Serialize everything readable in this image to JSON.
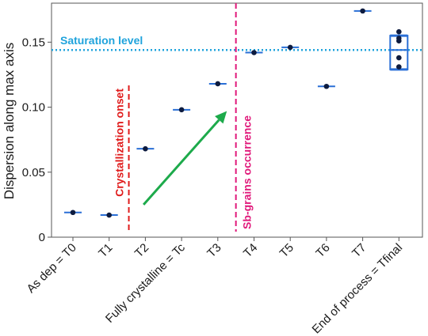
{
  "chart_data": {
    "type": "scatter",
    "ylabel": "Dispersion along max axis",
    "ylim": [
      0,
      0.18
    ],
    "yticks": [
      0,
      0.05,
      0.1,
      0.15
    ],
    "ytick_labels": [
      "0",
      "0.05",
      "0.10",
      "0.15"
    ],
    "categories": [
      "As dep = T0",
      "T1",
      "T2",
      "Fully crystalline = Tc",
      "T3",
      "T4",
      "T5",
      "T6",
      "T7",
      "End of process = Tfinal"
    ],
    "values": [
      0.019,
      0.017,
      0.068,
      0.098,
      0.118,
      0.142,
      0.146,
      0.116,
      0.174,
      null
    ],
    "final_points": [
      0.158,
      0.153,
      0.151,
      0.138,
      0.131
    ],
    "final_box": {
      "q1": 0.129,
      "median": 0.144,
      "q3": 0.155
    },
    "grid": false,
    "annotations": {
      "saturation": {
        "label": "Saturation level",
        "y": 0.144,
        "color": "#1fa3dc"
      },
      "crystallization": {
        "label": "Crystallization onset",
        "x_between": [
          1,
          2
        ],
        "color": "#e01b1b"
      },
      "sbgrains": {
        "label": "Sb-grains occurrence",
        "x_between": [
          4,
          5
        ],
        "color": "#e0187a"
      },
      "arrow": {
        "color": "#1daa4b",
        "from": {
          "x": 1.95,
          "y": 0.025
        },
        "to": {
          "x": 4.25,
          "y": 0.097
        }
      }
    },
    "colors": {
      "marker": "#0d1b3f",
      "bar": "#2a6fd6",
      "axis": "#555555"
    }
  }
}
